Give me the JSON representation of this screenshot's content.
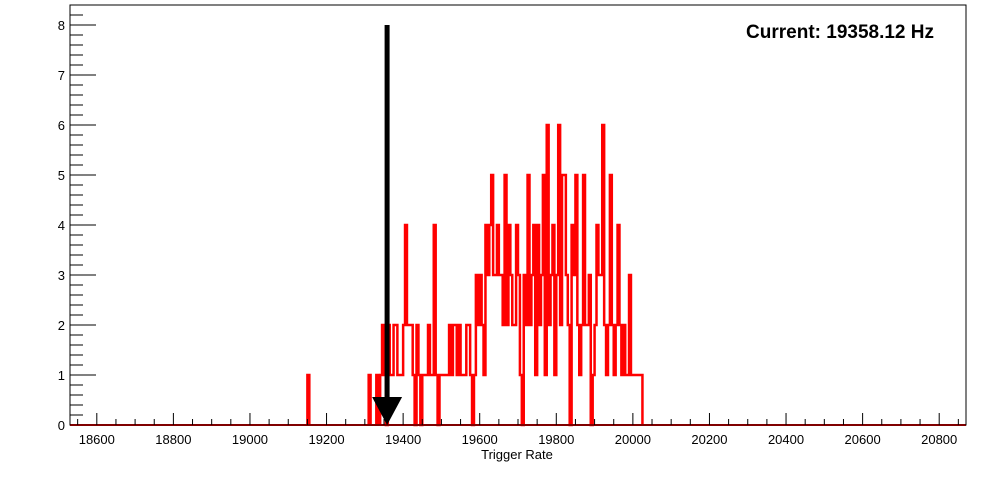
{
  "chart_data": {
    "type": "bar",
    "title": "",
    "xlabel": "Trigger Rate",
    "ylabel": "",
    "xlim": [
      18530,
      20870
    ],
    "ylim": [
      0,
      8.4
    ],
    "x_ticks": [
      18600,
      18800,
      19000,
      19200,
      19400,
      19600,
      19800,
      20000,
      20200,
      20400,
      20600,
      20800
    ],
    "y_ticks": [
      0,
      1,
      2,
      3,
      4,
      5,
      6,
      7,
      8
    ],
    "bin_width": 5,
    "series": [
      {
        "color": "#ff0000",
        "bins": [
          [
            19150,
            1
          ],
          [
            19310,
            1
          ],
          [
            19330,
            1
          ],
          [
            19340,
            1
          ],
          [
            19345,
            2
          ],
          [
            19350,
            1
          ],
          [
            19355,
            0
          ],
          [
            19360,
            2
          ],
          [
            19365,
            1
          ],
          [
            19370,
            1
          ],
          [
            19375,
            2
          ],
          [
            19380,
            2
          ],
          [
            19385,
            1
          ],
          [
            19390,
            1
          ],
          [
            19395,
            1
          ],
          [
            19400,
            2
          ],
          [
            19405,
            4
          ],
          [
            19410,
            2
          ],
          [
            19415,
            2
          ],
          [
            19420,
            2
          ],
          [
            19425,
            1
          ],
          [
            19430,
            0
          ],
          [
            19435,
            2
          ],
          [
            19440,
            1
          ],
          [
            19445,
            0
          ],
          [
            19450,
            1
          ],
          [
            19455,
            1
          ],
          [
            19460,
            1
          ],
          [
            19465,
            2
          ],
          [
            19470,
            1
          ],
          [
            19475,
            1
          ],
          [
            19480,
            4
          ],
          [
            19485,
            1
          ],
          [
            19490,
            0
          ],
          [
            19495,
            1
          ],
          [
            19500,
            1
          ],
          [
            19505,
            1
          ],
          [
            19510,
            1
          ],
          [
            19515,
            1
          ],
          [
            19520,
            2
          ],
          [
            19525,
            1
          ],
          [
            19530,
            2
          ],
          [
            19535,
            2
          ],
          [
            19540,
            1
          ],
          [
            19545,
            2
          ],
          [
            19550,
            1
          ],
          [
            19555,
            1
          ],
          [
            19560,
            1
          ],
          [
            19565,
            2
          ],
          [
            19570,
            2
          ],
          [
            19575,
            1
          ],
          [
            19580,
            0
          ],
          [
            19585,
            1
          ],
          [
            19590,
            3
          ],
          [
            19595,
            2
          ],
          [
            19600,
            3
          ],
          [
            19605,
            2
          ],
          [
            19610,
            1
          ],
          [
            19615,
            4
          ],
          [
            19620,
            3
          ],
          [
            19625,
            4
          ],
          [
            19630,
            5
          ],
          [
            19635,
            3
          ],
          [
            19640,
            3
          ],
          [
            19645,
            4
          ],
          [
            19650,
            3
          ],
          [
            19655,
            3
          ],
          [
            19660,
            2
          ],
          [
            19665,
            5
          ],
          [
            19670,
            2
          ],
          [
            19675,
            4
          ],
          [
            19680,
            3
          ],
          [
            19685,
            2
          ],
          [
            19690,
            2
          ],
          [
            19695,
            4
          ],
          [
            19700,
            3
          ],
          [
            19705,
            1
          ],
          [
            19710,
            0
          ],
          [
            19715,
            3
          ],
          [
            19720,
            2
          ],
          [
            19725,
            5
          ],
          [
            19730,
            2
          ],
          [
            19735,
            3
          ],
          [
            19740,
            4
          ],
          [
            19745,
            1
          ],
          [
            19750,
            4
          ],
          [
            19755,
            2
          ],
          [
            19760,
            3
          ],
          [
            19765,
            5
          ],
          [
            19770,
            1
          ],
          [
            19775,
            6
          ],
          [
            19780,
            2
          ],
          [
            19785,
            3
          ],
          [
            19790,
            4
          ],
          [
            19795,
            1
          ],
          [
            19800,
            3
          ],
          [
            19805,
            6
          ],
          [
            19810,
            2
          ],
          [
            19815,
            5
          ],
          [
            19820,
            5
          ],
          [
            19825,
            3
          ],
          [
            19830,
            2
          ],
          [
            19835,
            0
          ],
          [
            19840,
            4
          ],
          [
            19845,
            3
          ],
          [
            19850,
            5
          ],
          [
            19855,
            2
          ],
          [
            19860,
            1
          ],
          [
            19865,
            2
          ],
          [
            19870,
            5
          ],
          [
            19875,
            2
          ],
          [
            19880,
            2
          ],
          [
            19885,
            3
          ],
          [
            19890,
            0
          ],
          [
            19895,
            1
          ],
          [
            19900,
            2
          ],
          [
            19905,
            4
          ],
          [
            19910,
            3
          ],
          [
            19915,
            3
          ],
          [
            19920,
            6
          ],
          [
            19925,
            2
          ],
          [
            19930,
            1
          ],
          [
            19935,
            2
          ],
          [
            19940,
            5
          ],
          [
            19945,
            2
          ],
          [
            19950,
            1
          ],
          [
            19955,
            2
          ],
          [
            19960,
            4
          ],
          [
            19965,
            2
          ],
          [
            19970,
            1
          ],
          [
            19975,
            2
          ],
          [
            19980,
            1
          ],
          [
            19985,
            1
          ],
          [
            19990,
            3
          ],
          [
            19995,
            1
          ],
          [
            20000,
            1
          ],
          [
            20005,
            1
          ],
          [
            20010,
            1
          ],
          [
            20015,
            1
          ],
          [
            20020,
            1
          ]
        ]
      }
    ],
    "marker": {
      "x": 19358.12,
      "y_top": 8,
      "y_bottom": 0,
      "color": "#000000"
    },
    "annotation": "Current: 19358.12 Hz",
    "legend": "none",
    "grid": false
  }
}
